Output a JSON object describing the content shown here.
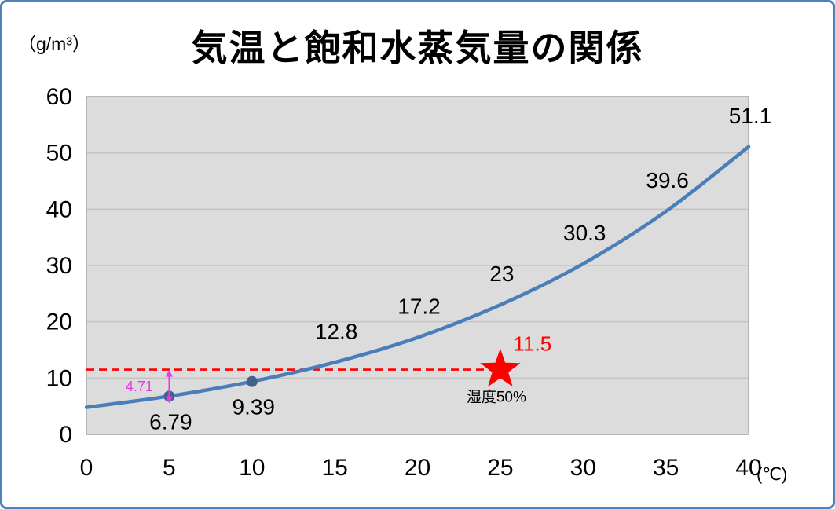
{
  "chart_data": {
    "type": "line",
    "title": "気温と飽和水蒸気量の関係",
    "y_unit_label": "（g/m³）",
    "x_unit_label": "(℃)",
    "x": [
      0,
      5,
      10,
      15,
      20,
      25,
      30,
      35,
      40
    ],
    "values": [
      4.8,
      6.79,
      9.39,
      12.8,
      17.2,
      23,
      30.3,
      39.6,
      51.1
    ],
    "point_labels": [
      "",
      "6.79",
      "9.39",
      "12.8",
      "17.2",
      "23",
      "30.3",
      "39.6",
      "51.1"
    ],
    "point_label_side": [
      "",
      "below",
      "below",
      "above",
      "above",
      "above",
      "above",
      "above",
      "above"
    ],
    "marker_x": [
      5,
      10
    ],
    "x_ticks": [
      "0",
      "5",
      "10",
      "15",
      "20",
      "25",
      "30",
      "35",
      "40"
    ],
    "y_ticks": [
      "0",
      "10",
      "20",
      "30",
      "40",
      "50",
      "60"
    ],
    "xlim": [
      0,
      40
    ],
    "ylim": [
      0,
      60
    ],
    "grid": "horizontal",
    "legend": "none",
    "annotations": {
      "humidity_line": {
        "y": 11.5,
        "x_start": 0,
        "x_end": 25
      },
      "star_point": {
        "x": 25,
        "y": 11.5,
        "label": "11.5",
        "sublabel": "湿度50%"
      },
      "diff_arrow": {
        "x": 5,
        "y_from": 6.79,
        "y_to": 11.5,
        "label": "4.71"
      }
    },
    "colors": {
      "line": "#4a7ebb",
      "marker": "#44618d",
      "plot_bg": "#dcdcdc",
      "grid": "#c3c3c3",
      "plot_border": "#a9a9a9",
      "frame_border": "#4f81bd",
      "annotation_red": "#ff0000",
      "annotation_pink": "#e23ce2",
      "text": "#000000"
    }
  }
}
